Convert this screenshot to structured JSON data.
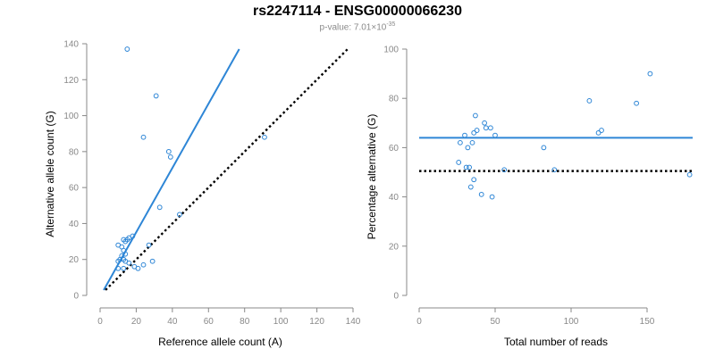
{
  "header": {
    "title": "rs2247114 - ENSG00000066230",
    "pvalue_prefix": "p-value: 7.01×10",
    "pvalue_exp": "-35"
  },
  "colors": {
    "points": "#2e86d6",
    "fit": "#2e86d6",
    "null": "#000000"
  },
  "chart_data": [
    {
      "type": "scatter",
      "xlabel": "Reference allele count (A)",
      "ylabel": "Alternative allele count (G)",
      "xlim": [
        0,
        140
      ],
      "ylim": [
        0,
        140
      ],
      "xticks": [
        0,
        20,
        40,
        60,
        80,
        100,
        120,
        140
      ],
      "yticks": [
        0,
        20,
        40,
        60,
        80,
        100,
        120,
        140
      ],
      "points": [
        [
          15,
          137
        ],
        [
          31,
          111
        ],
        [
          24,
          88
        ],
        [
          38,
          80
        ],
        [
          39,
          77
        ],
        [
          91,
          88
        ],
        [
          33,
          49
        ],
        [
          44,
          45
        ],
        [
          27,
          28
        ],
        [
          18,
          33
        ],
        [
          16,
          32
        ],
        [
          13,
          31
        ],
        [
          15,
          31
        ],
        [
          14,
          30
        ],
        [
          10,
          28
        ],
        [
          12,
          27
        ],
        [
          13,
          25
        ],
        [
          14,
          23
        ],
        [
          12,
          22
        ],
        [
          11,
          20
        ],
        [
          13,
          20
        ],
        [
          10,
          19
        ],
        [
          14,
          19
        ],
        [
          29,
          19
        ],
        [
          16,
          18
        ],
        [
          24,
          17
        ],
        [
          19,
          16
        ],
        [
          10,
          15
        ],
        [
          13,
          15
        ],
        [
          21,
          15
        ]
      ],
      "lines": [
        {
          "kind": "fit",
          "x": [
            2,
            77
          ],
          "y": [
            3,
            137
          ]
        },
        {
          "kind": "null",
          "x": [
            3,
            137
          ],
          "y": [
            3,
            137
          ]
        }
      ]
    },
    {
      "type": "scatter",
      "xlabel": "Total number of reads",
      "ylabel": "Percentage alternative (G)",
      "xlim": [
        0,
        180
      ],
      "ylim": [
        0,
        100
      ],
      "xticks": [
        0,
        50,
        100,
        150
      ],
      "yticks": [
        0,
        20,
        40,
        60,
        80,
        100
      ],
      "points": [
        [
          152,
          90
        ],
        [
          112,
          79
        ],
        [
          143,
          78
        ],
        [
          37,
          73
        ],
        [
          43,
          70
        ],
        [
          44,
          68
        ],
        [
          47,
          68
        ],
        [
          38,
          67
        ],
        [
          36,
          66
        ],
        [
          118,
          66
        ],
        [
          120,
          67
        ],
        [
          30,
          65
        ],
        [
          50,
          65
        ],
        [
          27,
          62
        ],
        [
          35,
          62
        ],
        [
          32,
          60
        ],
        [
          82,
          60
        ],
        [
          31,
          52
        ],
        [
          33,
          52
        ],
        [
          26,
          54
        ],
        [
          56,
          51
        ],
        [
          89,
          51
        ],
        [
          178,
          49
        ],
        [
          36,
          47
        ],
        [
          34,
          44
        ],
        [
          41,
          41
        ],
        [
          48,
          40
        ]
      ],
      "lines": [
        {
          "kind": "fit",
          "x": [
            0,
            180
          ],
          "y": [
            64,
            64
          ]
        },
        {
          "kind": "null",
          "x": [
            0,
            180
          ],
          "y": [
            50.5,
            50.5
          ]
        }
      ]
    }
  ]
}
